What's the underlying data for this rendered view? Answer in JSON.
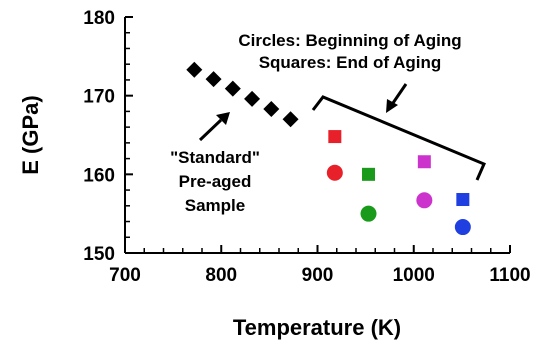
{
  "chart_data": {
    "type": "scatter",
    "xlabel": "Temperature (K)",
    "ylabel": "E (GPa)",
    "xlim": [
      700,
      1100
    ],
    "ylim": [
      150,
      180
    ],
    "x_ticks": [
      "700",
      "800",
      "900",
      "1000",
      "1100"
    ],
    "y_ticks": [
      "150",
      "160",
      "170",
      "180"
    ],
    "grid": false,
    "series": [
      {
        "marker": "diamond",
        "color": "#000000",
        "points": [
          {
            "x": 772,
            "y": 173.3
          },
          {
            "x": 792,
            "y": 172.1
          },
          {
            "x": 812,
            "y": 170.9
          },
          {
            "x": 832,
            "y": 169.6
          },
          {
            "x": 852,
            "y": 168.3
          },
          {
            "x": 872,
            "y": 167.0
          }
        ]
      },
      {
        "marker": "square",
        "points": [
          {
            "x": 918,
            "y": 164.8,
            "color": "#e8202a"
          },
          {
            "x": 953,
            "y": 160.0,
            "color": "#1a9a1a"
          },
          {
            "x": 1011,
            "y": 161.6,
            "color": "#cc33cc"
          },
          {
            "x": 1051,
            "y": 156.8,
            "color": "#1f3fe0"
          }
        ]
      },
      {
        "marker": "circle",
        "points": [
          {
            "x": 918,
            "y": 160.2,
            "color": "#e8202a"
          },
          {
            "x": 953,
            "y": 155.0,
            "color": "#1a9a1a"
          },
          {
            "x": 1011,
            "y": 156.7,
            "color": "#cc33cc"
          },
          {
            "x": 1051,
            "y": 153.3,
            "color": "#1f3fe0"
          }
        ]
      }
    ],
    "annotations": {
      "legend_lines": [
        "Circles: Beginning of Aging",
        "Squares: End of Aging"
      ],
      "sample_lines": [
        "\"Standard\"",
        "Pre-aged",
        "Sample"
      ]
    }
  }
}
